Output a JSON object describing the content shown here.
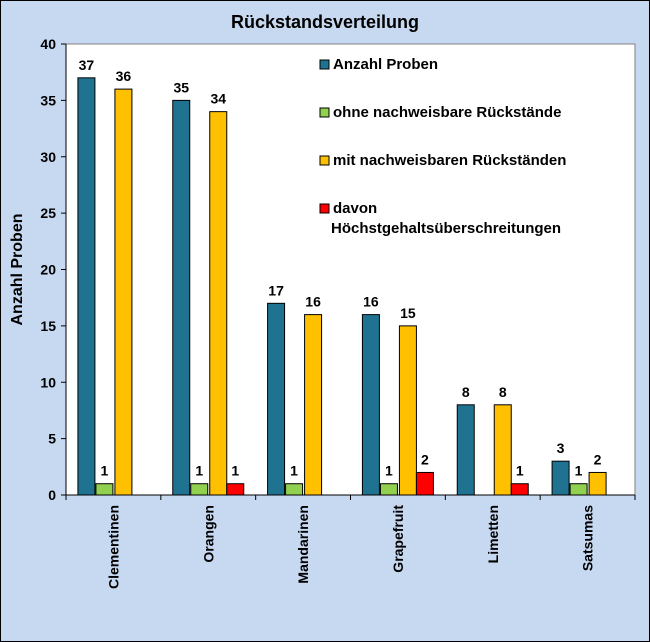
{
  "chart_data": {
    "type": "bar",
    "title": "Rückstandsverteilung",
    "ylabel": "Anzahl Proben",
    "xlabel": "",
    "ylim": [
      0,
      40
    ],
    "yticks": [
      0,
      5,
      10,
      15,
      20,
      25,
      30,
      35,
      40
    ],
    "grid": false,
    "legend_position": "top-right",
    "categories": [
      "Clementinen",
      "Orangen",
      "Mandarinen",
      "Grapefruit",
      "Limetten",
      "Satsumas"
    ],
    "series": [
      {
        "name": "Anzahl Proben",
        "color": "#1f7391",
        "values": [
          37,
          35,
          17,
          16,
          8,
          3
        ]
      },
      {
        "name": "ohne nachweisbare Rückstände",
        "color": "#92d050",
        "values": [
          1,
          1,
          1,
          1,
          null,
          1
        ]
      },
      {
        "name": "mit nachweisbaren Rückständen",
        "color": "#ffc000",
        "values": [
          36,
          34,
          16,
          15,
          8,
          2
        ]
      },
      {
        "name": "davon Höchstgehaltsüberschreitungen",
        "legend_lines": [
          "davon",
          "Höchstgehaltsüberschreitungen"
        ],
        "color": "#ff0000",
        "values": [
          null,
          1,
          null,
          2,
          1,
          null
        ]
      }
    ]
  }
}
